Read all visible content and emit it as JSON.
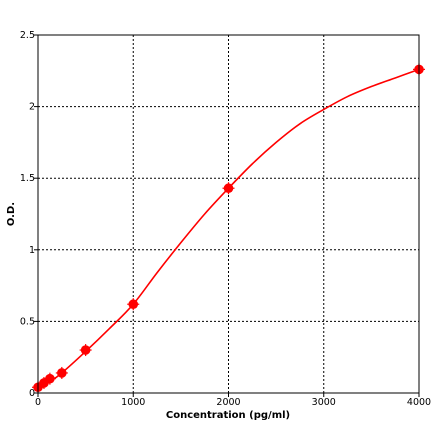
{
  "chart_data": {
    "type": "scatter",
    "title": "",
    "xlabel": "Concentration (pg/ml)",
    "ylabel": "O.D.",
    "xlim": [
      0,
      4000
    ],
    "ylim": [
      0,
      2.5
    ],
    "x_ticks": [
      0,
      1000,
      2000,
      3000,
      4000
    ],
    "x_tick_labels": [
      "0",
      "1000",
      "2000",
      "3000",
      "4000"
    ],
    "y_ticks": [
      0,
      0.5,
      1,
      1.5,
      2,
      2.5
    ],
    "y_tick_labels": [
      "0",
      "0.5",
      "1",
      "1.5",
      "2",
      "2.5"
    ],
    "grid": true,
    "series": [
      {
        "color": "#ff0000",
        "points": [
          {
            "x": 0,
            "y": 0.04
          },
          {
            "x": 62.5,
            "y": 0.07
          },
          {
            "x": 125,
            "y": 0.1
          },
          {
            "x": 250,
            "y": 0.14
          },
          {
            "x": 500,
            "y": 0.3
          },
          {
            "x": 1000,
            "y": 0.62
          },
          {
            "x": 2000,
            "y": 1.43
          },
          {
            "x": 4000,
            "y": 2.26
          }
        ],
        "fit_curve": {
          "type": "four-parameter-logistic",
          "color": "#ff0000",
          "x": [
            0,
            62.5,
            125,
            250,
            500,
            750,
            1000,
            1250,
            1500,
            1750,
            2000,
            2250,
            2500,
            2750,
            3000,
            3250,
            3500,
            3750,
            4000
          ],
          "y": [
            0.03,
            0.06,
            0.08,
            0.14,
            0.29,
            0.45,
            0.62,
            0.84,
            1.05,
            1.25,
            1.43,
            1.6,
            1.75,
            1.88,
            1.98,
            2.07,
            2.14,
            2.2,
            2.26
          ]
        }
      }
    ]
  }
}
